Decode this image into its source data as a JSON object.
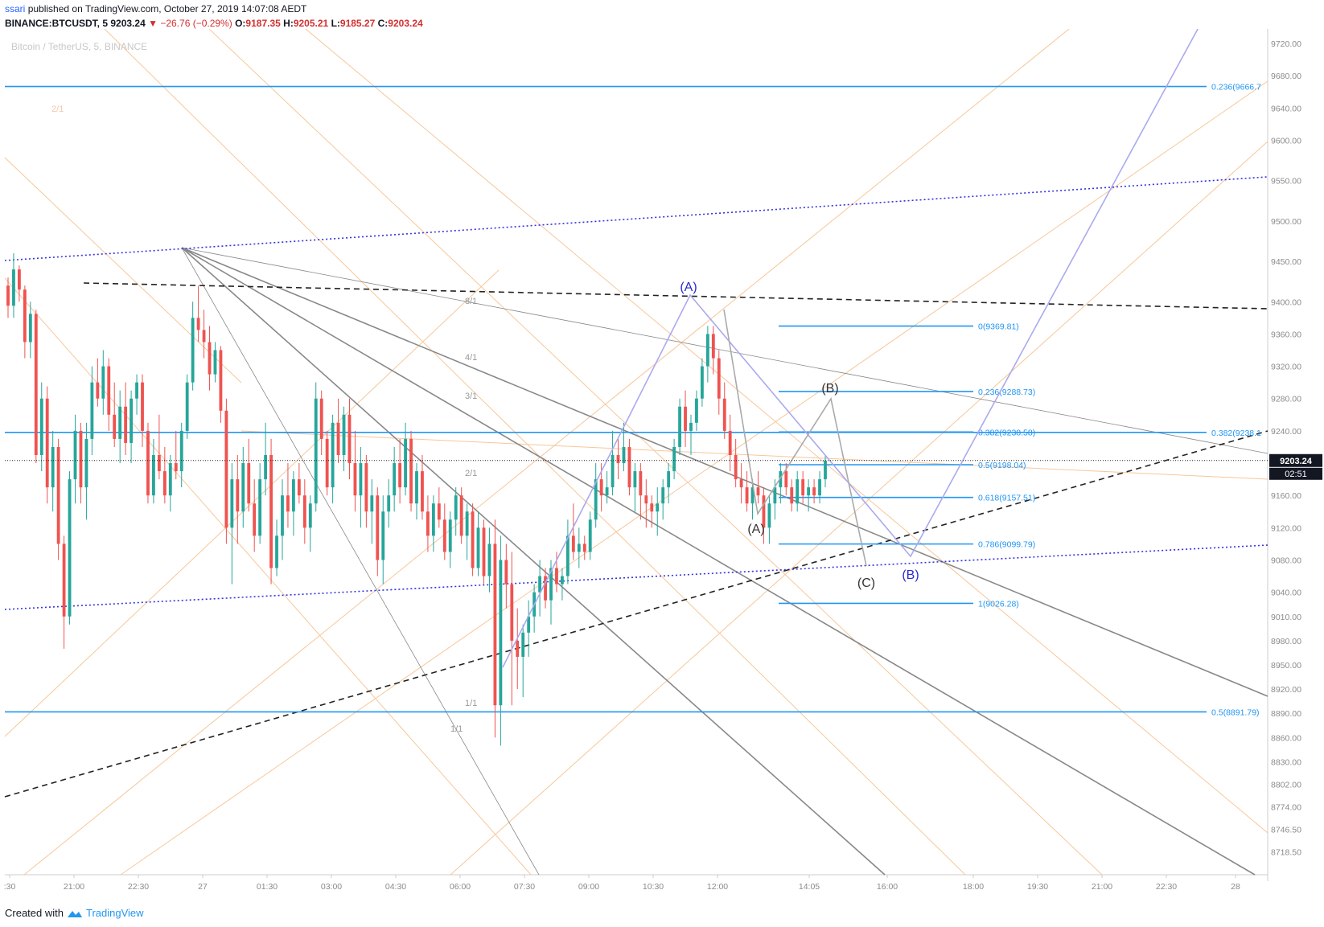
{
  "header": {
    "user": "ssari",
    "published": "published on TradingView.com, October 27, 2019 14:07:08 AEDT",
    "symbol": "BINANCE:BTCUSDT, 5",
    "last": "9203.24",
    "change_arrow": "▼",
    "change": "−26.76 (−0.29%)",
    "o_label": "O:",
    "o": "9187.35",
    "h_label": "H:",
    "h": "9205.21",
    "l_label": "L:",
    "l": "9185.27",
    "c_label": "C:",
    "c": "9203.24"
  },
  "footer": {
    "created_with": "Created with",
    "brand": "TradingView",
    "icon": "tradingview-logo-icon"
  },
  "colors": {
    "up": "#26a69a",
    "down": "#ef5350",
    "fib": "#2196f3",
    "fan": "#888888",
    "gann": "#f7c79a",
    "wave": "#aaaaee",
    "trend_dot": "#3333dd"
  },
  "chart_data": {
    "type": "candlestick",
    "title": "Bitcoin / TetherUS, 5, BINANCE",
    "ylim": [
      8690,
      9730
    ],
    "y_ticks": [
      "9720.00",
      "9680.00",
      "9640.00",
      "9600.00",
      "9550.00",
      "9500.00",
      "9450.00",
      "9400.00",
      "9360.00",
      "9320.00",
      "9280.00",
      "9240.00",
      "9160.00",
      "9120.00",
      "9080.00",
      "9040.00",
      "9010.00",
      "8980.00",
      "8950.00",
      "8920.00",
      "8890.00",
      "8860.00",
      "8830.00",
      "8802.00",
      "8774.00",
      "8746.50",
      "8718.50"
    ],
    "x_ticks": [
      ":30",
      "21:00",
      "22:30",
      "27",
      "01:30",
      "03:00",
      "04:30",
      "06:00",
      "07:30",
      "09:00",
      "10:30",
      "12:00",
      "14:05",
      "16:00",
      "18:00",
      "19:30",
      "21:00",
      "22:30",
      "28"
    ],
    "last_price": "9203.24",
    "countdown": "02:51",
    "candles": [
      [
        9420,
        9430,
        9380,
        9395
      ],
      [
        9395,
        9460,
        9380,
        9440
      ],
      [
        9440,
        9445,
        9400,
        9415
      ],
      [
        9415,
        9420,
        9330,
        9350
      ],
      [
        9350,
        9400,
        9330,
        9385
      ],
      [
        9385,
        9390,
        9200,
        9210
      ],
      [
        9210,
        9300,
        9190,
        9280
      ],
      [
        9280,
        9295,
        9150,
        9170
      ],
      [
        9170,
        9240,
        9140,
        9220
      ],
      [
        9220,
        9230,
        9080,
        9100
      ],
      [
        9100,
        9110,
        8970,
        9010
      ],
      [
        9010,
        9190,
        9000,
        9180
      ],
      [
        9180,
        9260,
        9150,
        9240
      ],
      [
        9240,
        9250,
        9150,
        9170
      ],
      [
        9170,
        9250,
        9130,
        9230
      ],
      [
        9230,
        9320,
        9210,
        9300
      ],
      [
        9300,
        9330,
        9270,
        9280
      ],
      [
        9280,
        9340,
        9260,
        9320
      ],
      [
        9320,
        9330,
        9240,
        9260
      ],
      [
        9260,
        9300,
        9220,
        9230
      ],
      [
        9230,
        9290,
        9200,
        9270
      ],
      [
        9270,
        9300,
        9210,
        9225
      ],
      [
        9225,
        9290,
        9200,
        9280
      ],
      [
        9280,
        9310,
        9260,
        9300
      ],
      [
        9300,
        9310,
        9220,
        9240
      ],
      [
        9240,
        9250,
        9150,
        9160
      ],
      [
        9160,
        9230,
        9150,
        9210
      ],
      [
        9210,
        9260,
        9180,
        9190
      ],
      [
        9190,
        9220,
        9150,
        9160
      ],
      [
        9160,
        9210,
        9140,
        9200
      ],
      [
        9200,
        9240,
        9180,
        9190
      ],
      [
        9190,
        9250,
        9170,
        9240
      ],
      [
        9240,
        9310,
        9230,
        9300
      ],
      [
        9300,
        9400,
        9290,
        9380
      ],
      [
        9380,
        9420,
        9350,
        9365
      ],
      [
        9365,
        9390,
        9330,
        9350
      ],
      [
        9350,
        9370,
        9290,
        9310
      ],
      [
        9310,
        9350,
        9300,
        9340
      ],
      [
        9340,
        9345,
        9250,
        9265
      ],
      [
        9265,
        9280,
        9100,
        9120
      ],
      [
        9120,
        9200,
        9050,
        9180
      ],
      [
        9180,
        9210,
        9100,
        9140
      ],
      [
        9140,
        9220,
        9120,
        9200
      ],
      [
        9200,
        9230,
        9140,
        9150
      ],
      [
        9150,
        9180,
        9090,
        9110
      ],
      [
        9110,
        9200,
        9100,
        9180
      ],
      [
        9180,
        9250,
        9160,
        9210
      ],
      [
        9210,
        9230,
        9050,
        9070
      ],
      [
        9070,
        9130,
        9060,
        9110
      ],
      [
        9110,
        9180,
        9080,
        9160
      ],
      [
        9160,
        9200,
        9120,
        9140
      ],
      [
        9140,
        9190,
        9110,
        9180
      ],
      [
        9180,
        9200,
        9150,
        9160
      ],
      [
        9160,
        9180,
        9100,
        9120
      ],
      [
        9120,
        9160,
        9090,
        9150
      ],
      [
        9150,
        9300,
        9140,
        9280
      ],
      [
        9280,
        9290,
        9210,
        9230
      ],
      [
        9230,
        9240,
        9160,
        9170
      ],
      [
        9170,
        9260,
        9150,
        9250
      ],
      [
        9250,
        9280,
        9200,
        9210
      ],
      [
        9210,
        9270,
        9190,
        9260
      ],
      [
        9260,
        9280,
        9180,
        9200
      ],
      [
        9200,
        9240,
        9140,
        9160
      ],
      [
        9160,
        9220,
        9120,
        9200
      ],
      [
        9200,
        9210,
        9120,
        9140
      ],
      [
        9140,
        9180,
        9100,
        9160
      ],
      [
        9160,
        9170,
        9060,
        9080
      ],
      [
        9080,
        9160,
        9050,
        9140
      ],
      [
        9140,
        9180,
        9120,
        9160
      ],
      [
        9160,
        9220,
        9140,
        9200
      ],
      [
        9200,
        9230,
        9150,
        9170
      ],
      [
        9170,
        9250,
        9160,
        9230
      ],
      [
        9230,
        9240,
        9140,
        9150
      ],
      [
        9150,
        9200,
        9130,
        9190
      ],
      [
        9190,
        9210,
        9130,
        9140
      ],
      [
        9140,
        9160,
        9090,
        9110
      ],
      [
        9110,
        9160,
        9090,
        9150
      ],
      [
        9150,
        9170,
        9120,
        9130
      ],
      [
        9130,
        9150,
        9080,
        9090
      ],
      [
        9090,
        9140,
        9070,
        9130
      ],
      [
        9130,
        9170,
        9110,
        9160
      ],
      [
        9160,
        9170,
        9100,
        9110
      ],
      [
        9110,
        9150,
        9080,
        9140
      ],
      [
        9140,
        9150,
        9060,
        9070
      ],
      [
        9070,
        9140,
        9060,
        9120
      ],
      [
        9120,
        9130,
        9050,
        9060
      ],
      [
        9060,
        9120,
        9040,
        9100
      ],
      [
        9100,
        9130,
        8860,
        8900
      ],
      [
        8900,
        9110,
        8850,
        9080
      ],
      [
        9080,
        9100,
        9020,
        9050
      ],
      [
        9050,
        9090,
        8900,
        8980
      ],
      [
        8980,
        9020,
        8920,
        8960
      ],
      [
        8960,
        9000,
        8910,
        8990
      ],
      [
        8990,
        9030,
        8960,
        9010
      ],
      [
        9010,
        9050,
        8990,
        9040
      ],
      [
        9040,
        9080,
        9010,
        9060
      ],
      [
        9060,
        9070,
        9020,
        9030
      ],
      [
        9030,
        9080,
        9000,
        9070
      ],
      [
        9070,
        9090,
        9040,
        9050
      ],
      [
        9050,
        9070,
        9030,
        9060
      ],
      [
        9060,
        9130,
        9050,
        9110
      ],
      [
        9110,
        9150,
        9080,
        9090
      ],
      [
        9090,
        9120,
        9070,
        9100
      ],
      [
        9100,
        9110,
        9080,
        9090
      ],
      [
        9090,
        9140,
        9080,
        9130
      ],
      [
        9130,
        9200,
        9120,
        9180
      ],
      [
        9180,
        9200,
        9140,
        9160
      ],
      [
        9160,
        9190,
        9150,
        9170
      ],
      [
        9170,
        9240,
        9160,
        9210
      ],
      [
        9210,
        9230,
        9180,
        9200
      ],
      [
        9200,
        9250,
        9190,
        9220
      ],
      [
        9220,
        9230,
        9160,
        9170
      ],
      [
        9170,
        9200,
        9140,
        9190
      ],
      [
        9190,
        9200,
        9130,
        9160
      ],
      [
        9160,
        9180,
        9120,
        9150
      ],
      [
        9150,
        9160,
        9120,
        9140
      ],
      [
        9140,
        9170,
        9110,
        9150
      ],
      [
        9150,
        9180,
        9130,
        9170
      ],
      [
        9170,
        9200,
        9150,
        9190
      ],
      [
        9190,
        9230,
        9180,
        9220
      ],
      [
        9220,
        9280,
        9210,
        9270
      ],
      [
        9270,
        9290,
        9220,
        9240
      ],
      [
        9240,
        9260,
        9210,
        9250
      ],
      [
        9250,
        9290,
        9240,
        9280
      ],
      [
        9280,
        9330,
        9270,
        9320
      ],
      [
        9320,
        9370,
        9300,
        9360
      ],
      [
        9360,
        9370,
        9310,
        9330
      ],
      [
        9330,
        9340,
        9260,
        9280
      ],
      [
        9280,
        9300,
        9230,
        9240
      ],
      [
        9240,
        9260,
        9190,
        9210
      ],
      [
        9210,
        9230,
        9170,
        9180
      ],
      [
        9180,
        9200,
        9150,
        9170
      ],
      [
        9170,
        9190,
        9140,
        9150
      ],
      [
        9150,
        9180,
        9130,
        9170
      ],
      [
        9170,
        9190,
        9150,
        9160
      ],
      [
        9160,
        9170,
        9100,
        9120
      ],
      [
        9120,
        9160,
        9100,
        9150
      ],
      [
        9150,
        9180,
        9130,
        9170
      ],
      [
        9170,
        9200,
        9150,
        9190
      ],
      [
        9190,
        9200,
        9160,
        9170
      ],
      [
        9170,
        9180,
        9140,
        9150
      ],
      [
        9150,
        9190,
        9140,
        9180
      ],
      [
        9180,
        9190,
        9150,
        9160
      ],
      [
        9160,
        9180,
        9140,
        9170
      ],
      [
        9170,
        9180,
        9150,
        9160
      ],
      [
        9160,
        9190,
        9150,
        9180
      ],
      [
        9180,
        9210,
        9170,
        9203
      ]
    ],
    "fib_levels": [
      {
        "label": "0(9369.81)",
        "value": 9369.81
      },
      {
        "label": "0.236(9288.73)",
        "value": 9288.73
      },
      {
        "label": "0.382(9238.58)",
        "value": 9238.58
      },
      {
        "label": "0.5(9198.04)",
        "value": 9198.04
      },
      {
        "label": "0.618(9157.51)",
        "value": 9157.51
      },
      {
        "label": "0.786(9099.79)",
        "value": 9099.79
      },
      {
        "label": "1(9026.28)",
        "value": 9026.28
      }
    ],
    "fib_long": [
      {
        "label": "0.236(9666.7",
        "value": 9666.7
      },
      {
        "label": "0.382(9238.1",
        "value": 9238.1
      },
      {
        "label": "0.5(8891.79)",
        "value": 8891.79
      }
    ],
    "fan_labels": [
      "8/1",
      "4/1",
      "3/1",
      "2/1",
      "1/1"
    ],
    "gann_labels": [
      "2/1",
      "1/1"
    ],
    "wave_labels_blue": [
      "(A)",
      "(B)"
    ],
    "wave_labels_gray": [
      "(A)",
      "(B)",
      "(C)"
    ]
  }
}
